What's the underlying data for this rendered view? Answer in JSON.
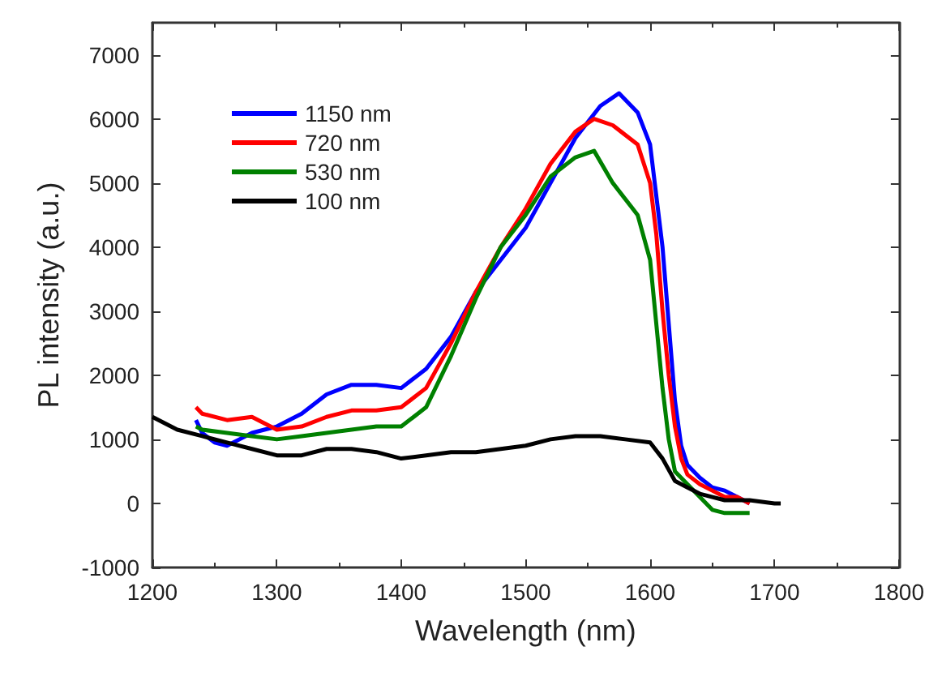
{
  "chart_data": {
    "type": "line",
    "xlabel": "Wavelength (nm)",
    "ylabel": "PL intensity (a.u.)",
    "xlim": [
      1200,
      1800
    ],
    "xticks": [
      1200,
      1300,
      1400,
      1500,
      1600,
      1700,
      1800
    ],
    "ylim": [
      -1000,
      7500
    ],
    "yticks": [
      -1000,
      0,
      1000,
      2000,
      3000,
      4000,
      5000,
      6000,
      7000
    ],
    "grid": false,
    "legend": "top left",
    "marker": "none",
    "line_style": "solid",
    "series": [
      {
        "name": "1150 nm",
        "color": "#0000ff",
        "x": [
          1235,
          1240,
          1250,
          1260,
          1270,
          1280,
          1290,
          1300,
          1320,
          1340,
          1360,
          1380,
          1400,
          1420,
          1440,
          1460,
          1480,
          1500,
          1520,
          1540,
          1560,
          1575,
          1590,
          1600,
          1610,
          1615,
          1620,
          1625,
          1630,
          1640,
          1650,
          1660,
          1670,
          1680
        ],
        "values": [
          1300,
          1100,
          950,
          900,
          1000,
          1100,
          1150,
          1200,
          1400,
          1700,
          1850,
          1850,
          1800,
          2100,
          2600,
          3300,
          3800,
          4300,
          5000,
          5700,
          6200,
          6400,
          6100,
          5600,
          4000,
          2800,
          1600,
          900,
          600,
          400,
          250,
          200,
          100,
          0
        ]
      },
      {
        "name": "720 nm",
        "color": "#ff0000",
        "x": [
          1235,
          1240,
          1260,
          1280,
          1300,
          1320,
          1340,
          1360,
          1380,
          1400,
          1420,
          1440,
          1460,
          1480,
          1500,
          1520,
          1540,
          1555,
          1570,
          1590,
          1600,
          1605,
          1610,
          1615,
          1620,
          1625,
          1630,
          1640,
          1650,
          1660,
          1670,
          1680
        ],
        "values": [
          1500,
          1400,
          1300,
          1350,
          1150,
          1200,
          1350,
          1450,
          1450,
          1500,
          1800,
          2500,
          3300,
          4000,
          4600,
          5300,
          5800,
          6000,
          5900,
          5600,
          5000,
          4200,
          3000,
          2000,
          1200,
          700,
          450,
          300,
          200,
          100,
          100,
          0
        ]
      },
      {
        "name": "530 nm",
        "color": "#008000",
        "x": [
          1235,
          1240,
          1260,
          1280,
          1300,
          1320,
          1340,
          1360,
          1380,
          1400,
          1420,
          1440,
          1460,
          1480,
          1500,
          1520,
          1540,
          1555,
          1570,
          1590,
          1600,
          1605,
          1610,
          1615,
          1620,
          1630,
          1640,
          1650,
          1660,
          1670,
          1680
        ],
        "values": [
          1200,
          1150,
          1100,
          1050,
          1000,
          1050,
          1100,
          1150,
          1200,
          1200,
          1500,
          2300,
          3200,
          4000,
          4500,
          5100,
          5400,
          5500,
          5000,
          4500,
          3800,
          2800,
          1800,
          1000,
          500,
          300,
          100,
          -100,
          -150,
          -150,
          -150
        ]
      },
      {
        "name": "100 nm",
        "color": "#000000",
        "x": [
          1200,
          1220,
          1240,
          1260,
          1280,
          1300,
          1320,
          1340,
          1360,
          1380,
          1400,
          1420,
          1440,
          1460,
          1480,
          1500,
          1520,
          1540,
          1560,
          1580,
          1600,
          1610,
          1620,
          1630,
          1640,
          1660,
          1680,
          1700,
          1705
        ],
        "values": [
          1350,
          1150,
          1050,
          950,
          850,
          750,
          750,
          850,
          850,
          800,
          700,
          750,
          800,
          800,
          850,
          900,
          1000,
          1050,
          1050,
          1000,
          950,
          700,
          350,
          250,
          150,
          50,
          50,
          0,
          0
        ]
      }
    ]
  }
}
